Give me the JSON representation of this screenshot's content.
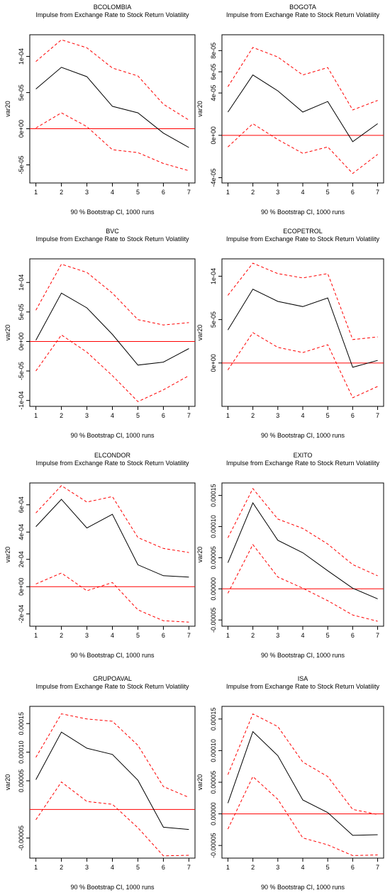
{
  "chart_data": [
    {
      "type": "line",
      "title": "BCOLOMBIA",
      "subtitle": "Impulse from Exchange Rate to Stock Return Volatility",
      "xlabel": "90 % Bootstrap CI,  1000 runs",
      "ylabel": "var20",
      "x": [
        1,
        2,
        3,
        4,
        5,
        6,
        7
      ],
      "xticks": [
        "1",
        "2",
        "3",
        "4",
        "5",
        "6",
        "7"
      ],
      "yticks": [
        {
          "v": -5e-05,
          "label": "-5e-05"
        },
        {
          "v": 0,
          "label": "0e+00"
        },
        {
          "v": 5e-05,
          "label": "5e-05"
        },
        {
          "v": 0.0001,
          "label": "1e-04"
        }
      ],
      "ylim": [
        -7.5e-05,
        0.00013
      ],
      "zero_line": 0,
      "series": [
        {
          "role": "irf",
          "color": "#000000",
          "style": "solid",
          "values": [
            5.5e-05,
            8.5e-05,
            7.2e-05,
            3.1e-05,
            2.2e-05,
            -6e-06,
            -2.6e-05
          ]
        },
        {
          "role": "upper",
          "color": "#ff0000",
          "style": "dashed",
          "values": [
            9.3e-05,
            0.000123,
            0.000112,
            8.4e-05,
            7.3e-05,
            3.4e-05,
            1.2e-05
          ]
        },
        {
          "role": "lower",
          "color": "#ff0000",
          "style": "dashed",
          "values": [
            1e-06,
            2.2e-05,
            3e-06,
            -2.9e-05,
            -3.3e-05,
            -4.8e-05,
            -5.8e-05
          ]
        }
      ]
    },
    {
      "type": "line",
      "title": "BOGOTA",
      "subtitle": "Impulse from Exchange Rate to Stock Return Volatility",
      "xlabel": "90 % Bootstrap CI,  1000 runs",
      "ylabel": "var20",
      "x": [
        1,
        2,
        3,
        4,
        5,
        6,
        7
      ],
      "xticks": [
        "1",
        "2",
        "3",
        "4",
        "5",
        "6",
        "7"
      ],
      "yticks": [
        {
          "v": -4e-05,
          "label": "-4e-05"
        },
        {
          "v": 0,
          "label": "0e+00"
        },
        {
          "v": 4e-05,
          "label": "4e-05"
        },
        {
          "v": 6e-05,
          "label": "6e-05"
        },
        {
          "v": 8e-05,
          "label": "8e-05"
        }
      ],
      "ylim": [
        -4.5e-05,
        9.5e-05
      ],
      "zero_line": 0,
      "series": [
        {
          "role": "irf",
          "color": "#000000",
          "style": "solid",
          "values": [
            2.2e-05,
            5.7e-05,
            4.2e-05,
            2.2e-05,
            3.2e-05,
            -6e-06,
            1.1e-05
          ]
        },
        {
          "role": "upper",
          "color": "#ff0000",
          "style": "dashed",
          "values": [
            4.6e-05,
            8.3e-05,
            7.4e-05,
            5.7e-05,
            6.4e-05,
            2.4e-05,
            3.3e-05
          ]
        },
        {
          "role": "lower",
          "color": "#ff0000",
          "style": "dashed",
          "values": [
            -1.1e-05,
            1.1e-05,
            -4e-06,
            -1.7e-05,
            -1.1e-05,
            -3.6e-05,
            -1.8e-05
          ]
        }
      ]
    },
    {
      "type": "line",
      "title": "BVC",
      "subtitle": "Impulse from Exchange Rate to Stock Return Volatility",
      "xlabel": "90 % Bootstrap CI,  1000 runs",
      "ylabel": "var20",
      "x": [
        1,
        2,
        3,
        4,
        5,
        6,
        7
      ],
      "xticks": [
        "1",
        "2",
        "3",
        "4",
        "5",
        "6",
        "7"
      ],
      "yticks": [
        {
          "v": -0.0001,
          "label": "-1e-04"
        },
        {
          "v": -5e-05,
          "label": "-5e-05"
        },
        {
          "v": 0,
          "label": "0e+00"
        },
        {
          "v": 5e-05,
          "label": "5e-05"
        },
        {
          "v": 0.0001,
          "label": "1e-04"
        }
      ],
      "ylim": [
        -0.00011,
        0.00014
      ],
      "zero_line": 0,
      "series": [
        {
          "role": "irf",
          "color": "#000000",
          "style": "solid",
          "values": [
            2e-06,
            8.2e-05,
            5.7e-05,
            1.2e-05,
            -4e-05,
            -3.5e-05,
            -1.2e-05
          ]
        },
        {
          "role": "upper",
          "color": "#ff0000",
          "style": "dashed",
          "values": [
            5.3e-05,
            0.000131,
            0.000117,
            8.2e-05,
            3.7e-05,
            2.8e-05,
            3.2e-05
          ]
        },
        {
          "role": "lower",
          "color": "#ff0000",
          "style": "dashed",
          "values": [
            -5e-05,
            1.1e-05,
            -1.8e-05,
            -5.8e-05,
            -0.000102,
            -8.2e-05,
            -5.8e-05
          ]
        }
      ]
    },
    {
      "type": "line",
      "title": "ECOPETROL",
      "subtitle": "Impulse from Exchange Rate to Stock Return Volatility",
      "xlabel": "90 % Bootstrap CI,  1000 runs",
      "ylabel": "var20",
      "x": [
        1,
        2,
        3,
        4,
        5,
        6,
        7
      ],
      "xticks": [
        "1",
        "2",
        "3",
        "4",
        "5",
        "6",
        "7"
      ],
      "yticks": [
        {
          "v": 0,
          "label": "0e+00"
        },
        {
          "v": 5e-05,
          "label": "5e-05"
        },
        {
          "v": 0.0001,
          "label": "1e-04"
        }
      ],
      "ylim": [
        -5e-05,
        0.00012
      ],
      "zero_line": 0,
      "series": [
        {
          "role": "irf",
          "color": "#000000",
          "style": "solid",
          "values": [
            3.8e-05,
            8.5e-05,
            7.1e-05,
            6.5e-05,
            7.5e-05,
            -5e-06,
            3e-06
          ]
        },
        {
          "role": "upper",
          "color": "#ff0000",
          "style": "dashed",
          "values": [
            7.8e-05,
            0.000115,
            0.000103,
            9.8e-05,
            0.000103,
            2.7e-05,
            3e-05
          ]
        },
        {
          "role": "lower",
          "color": "#ff0000",
          "style": "dashed",
          "values": [
            -8e-06,
            3.5e-05,
            1.8e-05,
            1.2e-05,
            2.1e-05,
            -4e-05,
            -2.7e-05
          ]
        }
      ]
    },
    {
      "type": "line",
      "title": "ELCONDOR",
      "subtitle": "Impulse from Exchange Rate to Stock Return Volatility",
      "xlabel": "90 % Bootstrap CI,  1000 runs",
      "ylabel": "var20",
      "x": [
        1,
        2,
        3,
        4,
        5,
        6,
        7
      ],
      "xticks": [
        "1",
        "2",
        "3",
        "4",
        "5",
        "6",
        "7"
      ],
      "yticks": [
        {
          "v": -0.0002,
          "label": "-2e-04"
        },
        {
          "v": 0,
          "label": "0e+00"
        },
        {
          "v": 0.0002,
          "label": "2e-04"
        },
        {
          "v": 0.0004,
          "label": "4e-04"
        },
        {
          "v": 0.0006,
          "label": "6e-04"
        }
      ],
      "ylim": [
        -0.00029,
        0.00076
      ],
      "zero_line": 0,
      "series": [
        {
          "role": "irf",
          "color": "#000000",
          "style": "solid",
          "values": [
            0.00044,
            0.00064,
            0.00043,
            0.00053,
            0.00016,
            8e-05,
            7e-05
          ]
        },
        {
          "role": "upper",
          "color": "#ff0000",
          "style": "dashed",
          "values": [
            0.00054,
            0.00074,
            0.00062,
            0.00066,
            0.00036,
            0.00028,
            0.00025
          ]
        },
        {
          "role": "lower",
          "color": "#ff0000",
          "style": "dashed",
          "values": [
            2e-05,
            0.0001,
            -3e-05,
            3e-05,
            -0.00017,
            -0.00025,
            -0.00026
          ]
        }
      ]
    },
    {
      "type": "line",
      "title": "EXITO",
      "subtitle": "Impulse from Exchange Rate to Stock Return Volatility",
      "xlabel": "90 % Bootstrap CI,  1000 runs",
      "ylabel": "var20",
      "x": [
        1,
        2,
        3,
        4,
        5,
        6,
        7
      ],
      "xticks": [
        "1",
        "2",
        "3",
        "4",
        "5",
        "6",
        "7"
      ],
      "yticks": [
        {
          "v": -5e-05,
          "label": "-0.00005"
        },
        {
          "v": 0,
          "label": "0.00000"
        },
        {
          "v": 5e-05,
          "label": "0.00005"
        },
        {
          "v": 0.0001,
          "label": "0.00010"
        },
        {
          "v": 0.00015,
          "label": "0.00015"
        }
      ],
      "ylim": [
        -6e-05,
        0.00017
      ],
      "zero_line": 0,
      "series": [
        {
          "role": "irf",
          "color": "#000000",
          "style": "solid",
          "values": [
            4.2e-05,
            0.000138,
            7.8e-05,
            5.8e-05,
            2.9e-05,
            1e-06,
            -1.6e-05
          ]
        },
        {
          "role": "upper",
          "color": "#ff0000",
          "style": "dashed",
          "values": [
            8.2e-05,
            0.000161,
            0.000112,
            9.7e-05,
            7.2e-05,
            3.9e-05,
            2.1e-05
          ]
        },
        {
          "role": "lower",
          "color": "#ff0000",
          "style": "dashed",
          "values": [
            -7e-06,
            7.1e-05,
            1.9e-05,
            1e-06,
            -1.9e-05,
            -4.2e-05,
            -5.2e-05
          ]
        }
      ]
    },
    {
      "type": "line",
      "title": "GRUPOAVAL",
      "subtitle": "Impulse from Exchange Rate to Stock Return Volatility",
      "xlabel": "90 % Bootstrap CI,  1000 runs",
      "ylabel": "var20",
      "x": [
        1,
        2,
        3,
        4,
        5,
        6,
        7
      ],
      "xticks": [
        "1",
        "2",
        "3",
        "4",
        "5",
        "6",
        "7"
      ],
      "yticks": [
        {
          "v": -5e-05,
          "label": "-0.00005"
        },
        {
          "v": 5e-05,
          "label": "0.00005"
        },
        {
          "v": 0.0001,
          "label": "0.00010"
        },
        {
          "v": 0.00015,
          "label": "0.00015"
        }
      ],
      "ylim": [
        -8.5e-05,
        0.00018
      ],
      "zero_line": 0,
      "series": [
        {
          "role": "irf",
          "color": "#000000",
          "style": "solid",
          "values": [
            5.2e-05,
            0.000135,
            0.000107,
            9.6e-05,
            5.1e-05,
            -3.1e-05,
            -3.5e-05
          ]
        },
        {
          "role": "upper",
          "color": "#ff0000",
          "style": "dashed",
          "values": [
            9.1e-05,
            0.000167,
            0.000158,
            0.000154,
            0.000112,
            4e-05,
            2.1e-05
          ]
        },
        {
          "role": "lower",
          "color": "#ff0000",
          "style": "dashed",
          "values": [
            -1.8e-05,
            4.8e-05,
            1.4e-05,
            9e-06,
            -3.2e-05,
            -8.1e-05,
            -8e-05
          ]
        }
      ]
    },
    {
      "type": "line",
      "title": "ISA",
      "subtitle": "Impulse from Exchange Rate to Stock Return Volatility",
      "xlabel": "90 % Bootstrap CI,  1000 runs",
      "ylabel": "var20",
      "x": [
        1,
        2,
        3,
        4,
        5,
        6,
        7
      ],
      "xticks": [
        "1",
        "2",
        "3",
        "4",
        "5",
        "6",
        "7"
      ],
      "yticks": [
        {
          "v": -5e-05,
          "label": "-0.00005"
        },
        {
          "v": 0,
          "label": "0.00000"
        },
        {
          "v": 5e-05,
          "label": "0.00005"
        },
        {
          "v": 0.0001,
          "label": "0.00010"
        },
        {
          "v": 0.00015,
          "label": "0.00015"
        }
      ],
      "ylim": [
        -7e-05,
        0.00017
      ],
      "zero_line": 0,
      "series": [
        {
          "role": "irf",
          "color": "#000000",
          "style": "solid",
          "values": [
            1.7e-05,
            0.00013,
            9.2e-05,
            2.2e-05,
            2e-06,
            -3.4e-05,
            -3.3e-05
          ]
        },
        {
          "role": "upper",
          "color": "#ff0000",
          "style": "dashed",
          "values": [
            6.2e-05,
            0.000158,
            0.000138,
            8.2e-05,
            5.9e-05,
            7e-06,
            -1e-06
          ]
        },
        {
          "role": "lower",
          "color": "#ff0000",
          "style": "dashed",
          "values": [
            -2.4e-05,
            5.9e-05,
            2.3e-05,
            -3.8e-05,
            -4.9e-05,
            -6.6e-05,
            -6.5e-05
          ]
        }
      ]
    }
  ]
}
